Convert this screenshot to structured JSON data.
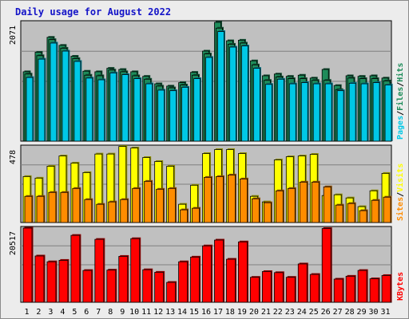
{
  "title": "Daily usage for August 2022",
  "colors": {
    "pages": "#00c8e6",
    "files": "#1e8c5a",
    "hits": "#1e8c5a",
    "visits": "#ffff00",
    "sites": "#ff8c00",
    "kbytes": "#ff0000",
    "days_weekend": "#1e8c5a",
    "days_weekday": "#000000",
    "axis_text": "#000000",
    "plot_bg": "#c0c0c0",
    "frame_bg": "#ececec"
  },
  "chart_data": [
    {
      "type": "bar",
      "title": "",
      "categories": [
        "1",
        "2",
        "3",
        "4",
        "5",
        "6",
        "7",
        "8",
        "9",
        "10",
        "11",
        "12",
        "13",
        "14",
        "15",
        "16",
        "17",
        "18",
        "19",
        "20",
        "21",
        "22",
        "23",
        "24",
        "25",
        "26",
        "27",
        "28",
        "29",
        "30",
        "31"
      ],
      "weekend_days": [
        "6",
        "7",
        "13",
        "14",
        "20",
        "21",
        "27",
        "28"
      ],
      "ymax_label": "2071",
      "ylim": [
        0,
        2071
      ],
      "legend": [
        "Pages",
        "Files",
        "Hits"
      ],
      "legend_placement": "right",
      "series": [
        {
          "name": "Hits",
          "values": [
            1210,
            1550,
            1810,
            1670,
            1480,
            1220,
            1210,
            1270,
            1250,
            1210,
            1130,
            1000,
            960,
            1020,
            1200,
            1570,
            2071,
            1750,
            1760,
            1400,
            1140,
            1170,
            1130,
            1150,
            1100,
            1250,
            970,
            1140,
            1130,
            1140,
            1100
          ]
        },
        {
          "name": "Files",
          "values": [
            1170,
            1490,
            1770,
            1620,
            1440,
            1150,
            1140,
            1240,
            1210,
            1140,
            1080,
            960,
            930,
            980,
            1150,
            1520,
            1970,
            1690,
            1710,
            1330,
            1060,
            1120,
            1090,
            1090,
            1060,
            1060,
            900,
            1100,
            1090,
            1090,
            1050
          ]
        },
        {
          "name": "Pages",
          "values": [
            1110,
            1430,
            1710,
            1570,
            1390,
            1100,
            1070,
            1190,
            1160,
            1090,
            1000,
            890,
            880,
            940,
            1090,
            1460,
            1910,
            1640,
            1660,
            1270,
            990,
            1080,
            1000,
            1020,
            1000,
            1000,
            880,
            1010,
            1000,
            1020,
            980
          ]
        }
      ]
    },
    {
      "type": "bar",
      "title": "",
      "categories": [
        "1",
        "2",
        "3",
        "4",
        "5",
        "6",
        "7",
        "8",
        "9",
        "10",
        "11",
        "12",
        "13",
        "14",
        "15",
        "16",
        "17",
        "18",
        "19",
        "20",
        "21",
        "22",
        "23",
        "24",
        "25",
        "26",
        "27",
        "28",
        "29",
        "30",
        "31"
      ],
      "ymax_label": "478",
      "ylim": [
        0,
        478
      ],
      "legend": [
        "Sites",
        "Visits"
      ],
      "legend_placement": "right",
      "series": [
        {
          "name": "Visits",
          "values": [
            290,
            280,
            355,
            420,
            375,
            315,
            432,
            432,
            480,
            470,
            410,
            385,
            355,
            115,
            235,
            435,
            460,
            460,
            435,
            165,
            130,
            395,
            415,
            420,
            430,
            170,
            175,
            155,
            100,
            200,
            310
          ]
        },
        {
          "name": "Sites",
          "values": [
            165,
            165,
            190,
            190,
            215,
            145,
            115,
            130,
            145,
            215,
            260,
            210,
            215,
            80,
            90,
            285,
            290,
            300,
            275,
            150,
            125,
            200,
            215,
            255,
            255,
            225,
            110,
            120,
            75,
            140,
            160
          ]
        }
      ]
    },
    {
      "type": "bar",
      "title": "",
      "categories": [
        "1",
        "2",
        "3",
        "4",
        "5",
        "6",
        "7",
        "8",
        "9",
        "10",
        "11",
        "12",
        "13",
        "14",
        "15",
        "16",
        "17",
        "18",
        "19",
        "20",
        "21",
        "22",
        "23",
        "24",
        "25",
        "26",
        "27",
        "28",
        "29",
        "30",
        "31"
      ],
      "ymax_label": "20517",
      "ylim": [
        0,
        20517
      ],
      "legend": [
        "KBytes"
      ],
      "legend_placement": "right",
      "series": [
        {
          "name": "KBytes",
          "values": [
            20517,
            12800,
            11200,
            11600,
            18500,
            8800,
            17400,
            8900,
            12700,
            17600,
            9000,
            8300,
            5500,
            11200,
            12500,
            15600,
            17200,
            11900,
            16700,
            6900,
            8500,
            8200,
            6900,
            10600,
            7700,
            20400,
            6400,
            7200,
            8800,
            6500,
            7400
          ]
        }
      ]
    }
  ]
}
